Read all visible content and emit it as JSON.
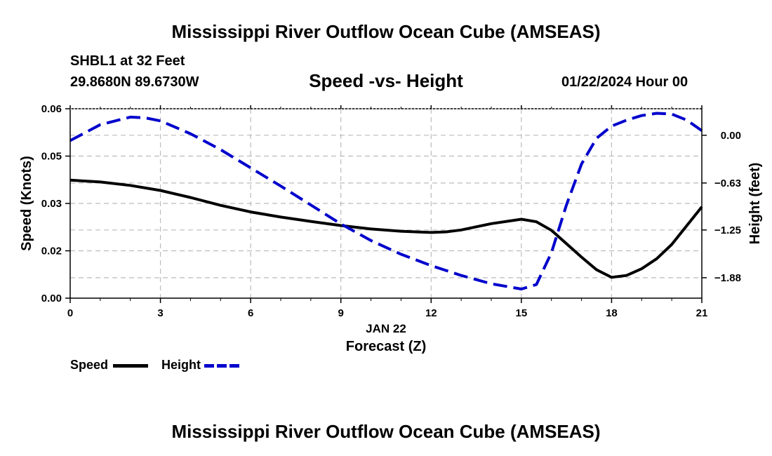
{
  "page": {
    "title": "Mississippi River Outflow Ocean Cube (AMSEAS)",
    "station_line": "SHBL1 at 32 Feet",
    "coords_line": "29.8680N  89.6730W",
    "date_line": "01/22/2024 Hour 00",
    "footer_title": "Mississippi River Outflow Ocean Cube (AMSEAS)"
  },
  "colors": {
    "speed": "#000000",
    "height": "#0000cc",
    "grid": "#bbbbbb"
  },
  "chart_data": {
    "type": "line",
    "title": "Speed -vs- Height",
    "xlabel": "Forecast (Z)",
    "xlabel_date": "JAN 22",
    "ylabel_left": "Speed (Knots)",
    "ylabel_right": "Height (feet)",
    "xlim": [
      0,
      21
    ],
    "ylim_left": [
      0,
      0.06
    ],
    "ylim_right": [
      -2.15,
      0.35
    ],
    "x_ticks": [
      0,
      3,
      6,
      9,
      12,
      15,
      18,
      21
    ],
    "x_tick_labels": [
      "0",
      "3",
      "6",
      "9",
      "12",
      "15",
      "18",
      "21"
    ],
    "y_left_ticks": [
      0.0,
      0.015,
      0.03,
      0.045,
      0.06
    ],
    "y_left_tick_labels": [
      "0.00",
      "0.02",
      "0.03",
      "0.05",
      "0.06"
    ],
    "y_right_ticks": [
      0.0,
      -0.63,
      -1.25,
      -1.88
    ],
    "y_right_tick_labels": [
      "0.00",
      "−0.63",
      "−1.25",
      "−1.88"
    ],
    "series": [
      {
        "name": "Speed",
        "axis": "left",
        "style": "solid",
        "x": [
          0,
          1,
          2,
          3,
          4,
          5,
          6,
          7,
          8,
          9,
          10,
          11,
          12,
          12.5,
          13,
          14,
          15,
          15.5,
          16,
          17,
          17.5,
          18,
          18.5,
          19,
          19.5,
          20,
          21
        ],
        "values": [
          0.0374,
          0.0368,
          0.0357,
          0.0341,
          0.0319,
          0.0294,
          0.0273,
          0.0257,
          0.0243,
          0.023,
          0.0219,
          0.0212,
          0.0208,
          0.021,
          0.0216,
          0.0236,
          0.025,
          0.0242,
          0.0215,
          0.013,
          0.009,
          0.0066,
          0.0072,
          0.0093,
          0.0125,
          0.017,
          0.0289
        ]
      },
      {
        "name": "Height",
        "axis": "right",
        "style": "dashed",
        "x": [
          0,
          1,
          2,
          2.5,
          3,
          4,
          5,
          6,
          7,
          8,
          9,
          10,
          11,
          12,
          13,
          14,
          15,
          15.5,
          16,
          16.5,
          17,
          17.5,
          18,
          18.5,
          19,
          19.5,
          20,
          20.5,
          21
        ],
        "values": [
          -0.07,
          0.14,
          0.24,
          0.23,
          0.19,
          0.02,
          -0.19,
          -0.43,
          -0.67,
          -0.92,
          -1.17,
          -1.39,
          -1.57,
          -1.72,
          -1.85,
          -1.96,
          -2.03,
          -1.97,
          -1.55,
          -0.92,
          -0.38,
          -0.04,
          0.12,
          0.2,
          0.26,
          0.29,
          0.28,
          0.2,
          0.06
        ]
      }
    ],
    "legend": {
      "speed_label": "Speed",
      "height_label": "Height"
    }
  }
}
